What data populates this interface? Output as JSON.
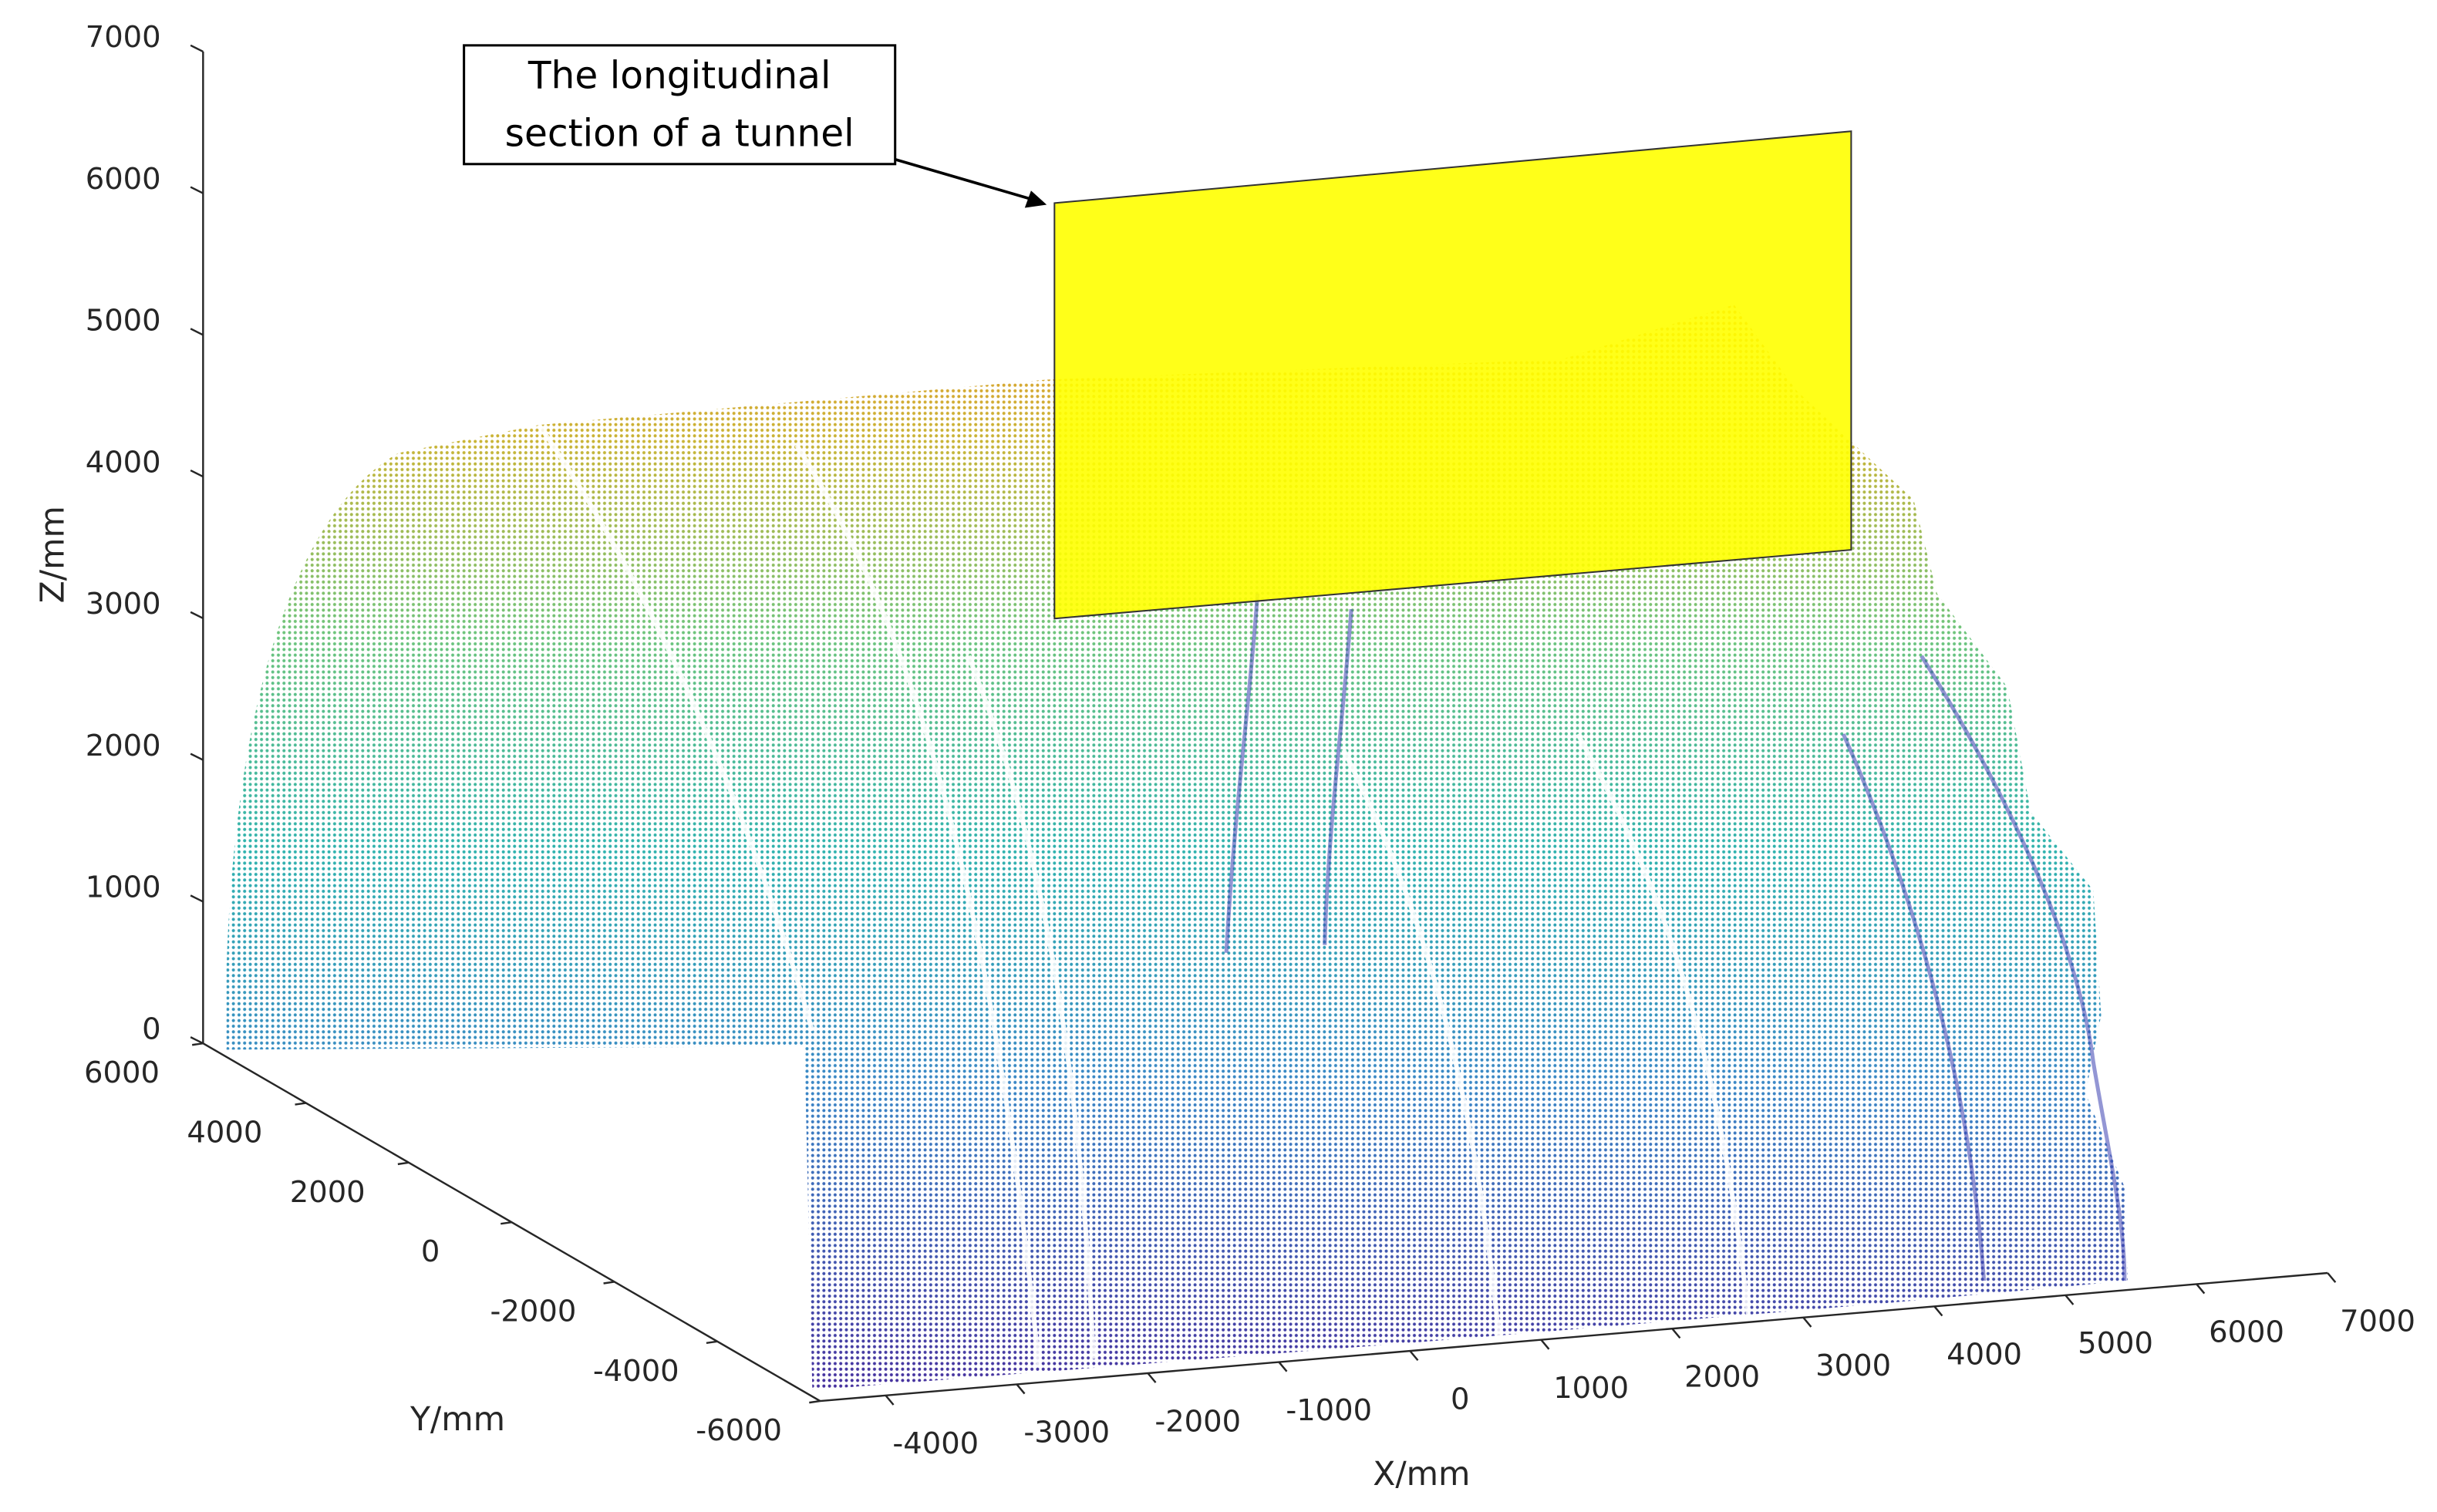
{
  "chart_data": {
    "type": "scatter3d",
    "xlabel": "X/mm",
    "ylabel": "Y/mm",
    "zlabel": "Z/mm",
    "xlim": [
      -4500,
      7000
    ],
    "ylim": [
      -6000,
      6000
    ],
    "zlim": [
      0,
      7000
    ],
    "xticks": [
      -4000,
      -3000,
      -2000,
      -1000,
      0,
      1000,
      2000,
      3000,
      4000,
      5000,
      6000,
      7000
    ],
    "yticks": [
      -6000,
      -4000,
      -2000,
      0,
      2000,
      4000,
      6000
    ],
    "zticks": [
      0,
      1000,
      2000,
      3000,
      4000,
      5000,
      6000,
      7000
    ],
    "annotation": [
      "The longitudinal",
      "section of a tunnel"
    ]
  }
}
